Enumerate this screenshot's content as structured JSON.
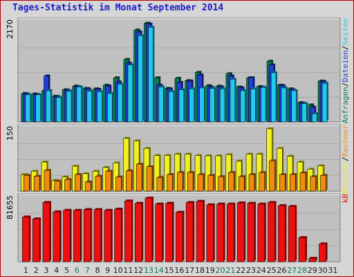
{
  "title": "Tages-Statistik im Monat September 2014",
  "colors": {
    "hits": "#0b7a55",
    "files": "#1f3fd6",
    "pages": "#22c8ee",
    "visits": "#f0f020",
    "sites": "#f08a10",
    "kbytes": "#ee1010",
    "weekend": "#0b7a55",
    "weekday": "#1a1a1a",
    "panel": "#c0c0c0"
  },
  "right_labels": {
    "top": [
      "Anfragen",
      "Dateien",
      "Seiten"
    ],
    "middle": [
      "Besuche",
      "Rechner"
    ],
    "bottom": [
      "kB"
    ]
  },
  "chart_data": [
    {
      "type": "bar",
      "max_label": "2170",
      "ylim": [
        0,
        2170
      ],
      "categories": [
        "1",
        "2",
        "3",
        "4",
        "5",
        "6",
        "7",
        "8",
        "9",
        "10",
        "11",
        "12",
        "13",
        "14",
        "15",
        "16",
        "17",
        "18",
        "19",
        "20",
        "21",
        "22",
        "23",
        "24",
        "25",
        "26",
        "27",
        "28",
        "29",
        "30",
        "31"
      ],
      "series": [
        {
          "name": "Anfragen",
          "values": [
            620,
            610,
            680,
            560,
            700,
            780,
            730,
            720,
            800,
            960,
            1360,
            2000,
            2150,
            960,
            730,
            950,
            900,
            1080,
            790,
            780,
            1050,
            760,
            960,
            770,
            1320,
            800,
            720,
            420,
            370,
            890,
            0
          ]
        },
        {
          "name": "Dateien",
          "values": [
            610,
            600,
            1000,
            550,
            690,
            770,
            720,
            710,
            780,
            870,
            1280,
            1960,
            2130,
            800,
            720,
            860,
            890,
            1020,
            760,
            760,
            1000,
            740,
            960,
            760,
            1240,
            790,
            700,
            410,
            320,
            880,
            0
          ]
        },
        {
          "name": "Seiten",
          "values": [
            590,
            590,
            680,
            530,
            670,
            760,
            670,
            660,
            620,
            820,
            1240,
            1880,
            2060,
            760,
            660,
            700,
            720,
            740,
            730,
            720,
            930,
            680,
            720,
            750,
            1070,
            740,
            680,
            400,
            180,
            840,
            0
          ]
        }
      ]
    },
    {
      "type": "bar",
      "max_label": "150",
      "ylim": [
        0,
        150
      ],
      "categories": [
        "1",
        "2",
        "3",
        "4",
        "5",
        "6",
        "7",
        "8",
        "9",
        "10",
        "11",
        "12",
        "13",
        "14",
        "15",
        "16",
        "17",
        "18",
        "19",
        "20",
        "21",
        "22",
        "23",
        "24",
        "25",
        "26",
        "27",
        "28",
        "29",
        "30",
        "31"
      ],
      "series": [
        {
          "name": "Besuche",
          "values": [
            40,
            48,
            70,
            26,
            34,
            60,
            42,
            48,
            57,
            68,
            127,
            121,
            103,
            86,
            86,
            89,
            89,
            86,
            85,
            85,
            88,
            72,
            89,
            89,
            150,
            103,
            84,
            70,
            53,
            61,
            0
          ]
        },
        {
          "name": "Rechner",
          "values": [
            38,
            36,
            50,
            24,
            28,
            40,
            22,
            36,
            48,
            34,
            49,
            65,
            59,
            33,
            40,
            45,
            45,
            40,
            38,
            35,
            45,
            35,
            40,
            45,
            73,
            40,
            40,
            44,
            35,
            38,
            0
          ]
        }
      ]
    },
    {
      "type": "bar",
      "max_label": "81655",
      "ylim": [
        0,
        81655
      ],
      "categories": [
        "1",
        "2",
        "3",
        "4",
        "5",
        "6",
        "7",
        "8",
        "9",
        "10",
        "11",
        "12",
        "13",
        "14",
        "15",
        "16",
        "17",
        "18",
        "19",
        "20",
        "21",
        "22",
        "23",
        "24",
        "25",
        "26",
        "27",
        "28",
        "29",
        "30",
        "31"
      ],
      "series": [
        {
          "name": "kB",
          "values": [
            57500,
            55000,
            76000,
            64000,
            66000,
            66000,
            67000,
            67000,
            66000,
            67500,
            78000,
            75000,
            81655,
            74000,
            75000,
            63500,
            76000,
            77500,
            73000,
            74000,
            74000,
            75500,
            75000,
            74000,
            76000,
            72000,
            71000,
            31000,
            4500,
            23000,
            0
          ]
        }
      ]
    }
  ],
  "x_axis": {
    "labels": [
      "1",
      "2",
      "3",
      "4",
      "5",
      "6",
      "7",
      "8",
      "9",
      "10",
      "11",
      "12",
      "13",
      "14",
      "15",
      "16",
      "17",
      "18",
      "19",
      "20",
      "21",
      "22",
      "23",
      "24",
      "25",
      "26",
      "27",
      "28",
      "29",
      "30",
      "31"
    ],
    "weekend": [
      6,
      7,
      13,
      14,
      20,
      21,
      27,
      28
    ]
  }
}
